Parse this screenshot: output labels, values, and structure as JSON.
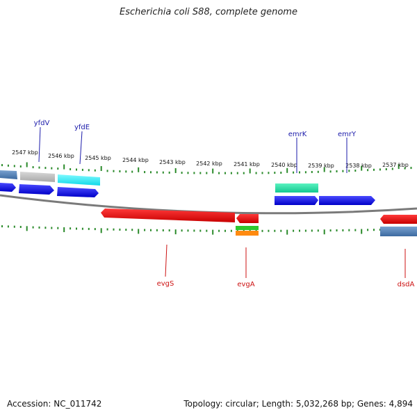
{
  "title": "Escherichia coli S88, complete genome",
  "footer": {
    "accession": "Accession: NC_011742",
    "summary": "Topology: circular; Length: 5,032,268 bp; Genes: 4,894"
  },
  "colors": {
    "forward_cds": "#0a0aee",
    "reverse_cds": "#ee0a0a",
    "tick": "#2a8a2a",
    "backbone": "#888888",
    "forward_label": "#1a1aaa",
    "reverse_label": "#cc1111"
  },
  "scale_labels": [
    "2547 kbp",
    "2546 kbp",
    "2545 kbp",
    "2544 kbp",
    "2543 kbp",
    "2542 kbp",
    "2541 kbp",
    "2540 kbp",
    "2539 kbp",
    "2538 kbp",
    "2537 kbp"
  ],
  "gene_labels": {
    "forward": [
      "yfdV",
      "yfdE",
      "emrK",
      "emrY"
    ],
    "reverse": [
      "evgS",
      "evgA",
      "dsdA"
    ]
  }
}
